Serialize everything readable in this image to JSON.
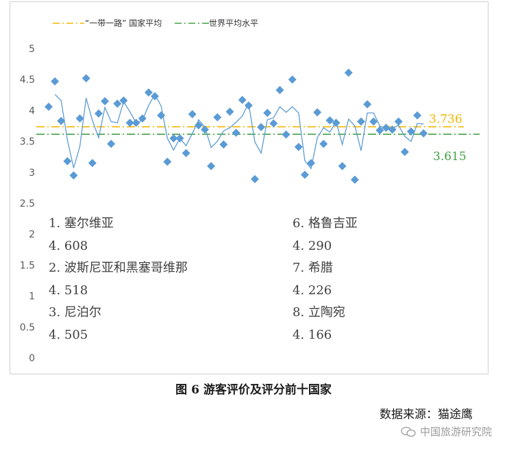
{
  "chart_data": {
    "type": "scatter",
    "yticks": [
      "5",
      "4.5",
      "4",
      "3.5",
      "3",
      "2.5",
      "2",
      "1.5",
      "1",
      "0.5",
      "0"
    ],
    "ylim": [
      0,
      5
    ],
    "grid": false,
    "legend_position": "top-left",
    "series": [
      {
        "name": "“一带一路” 国家平均",
        "kind": "hline",
        "value": 3.736,
        "color": "#f4b400",
        "value_label": "3.736"
      },
      {
        "name": "世界平均水平",
        "kind": "hline",
        "value": 3.615,
        "color": "#43a047",
        "value_label": "3.615"
      }
    ],
    "scatter_values": [
      4.06,
      4.47,
      3.83,
      3.18,
      2.95,
      3.87,
      4.52,
      3.15,
      3.95,
      4.15,
      3.46,
      4.11,
      4.16,
      3.8,
      3.8,
      3.87,
      4.29,
      4.23,
      3.92,
      3.17,
      3.55,
      3.55,
      3.31,
      3.94,
      3.76,
      3.69,
      3.1,
      3.89,
      3.45,
      3.98,
      3.64,
      4.17,
      4.08,
      2.89,
      3.73,
      3.96,
      3.79,
      4.33,
      3.61,
      4.5,
      3.41,
      2.96,
      3.15,
      3.97,
      3.46,
      3.84,
      3.8,
      3.1,
      4.61,
      2.88,
      3.82,
      4.1,
      3.82,
      3.68,
      3.72,
      3.69,
      3.82,
      3.33,
      3.66,
      3.92,
      3.63
    ],
    "moving_avg": [
      null,
      4.26,
      4.16,
      3.52,
      3.07,
      3.42,
      4.2,
      3.84,
      3.56,
      4.05,
      3.82,
      3.8,
      4.14,
      3.98,
      3.8,
      3.84,
      4.08,
      4.26,
      4.07,
      3.55,
      3.36,
      3.55,
      3.43,
      3.63,
      3.85,
      3.73,
      3.4,
      3.5,
      3.67,
      3.72,
      3.81,
      3.91,
      4.12,
      3.49,
      3.31,
      3.85,
      3.88,
      4.06,
      3.97,
      4.06,
      3.96,
      3.19,
      3.06,
      3.56,
      3.72,
      3.65,
      3.82,
      3.45,
      3.86,
      3.75,
      3.35,
      3.96,
      3.96,
      3.75,
      3.7,
      3.71,
      3.76,
      3.58,
      3.5,
      3.79,
      3.78
    ],
    "ranking": [
      {
        "name": "1. 塞尔维亚",
        "score": "4. 608"
      },
      {
        "name": "2. 波斯尼亚和黑塞哥维那",
        "score": "4. 518"
      },
      {
        "name": "3. 尼泊尔",
        "score": "4. 505"
      },
      {
        "name": "6. 格鲁吉亚",
        "score": "4. 290"
      },
      {
        "name": "7. 希腊",
        "score": "4. 226"
      },
      {
        "name": "8. 立陶宛",
        "score": "4. 166"
      }
    ],
    "colors": {
      "points": "#5b9bd5",
      "line": "#5b9bd5",
      "axis_text": "#595959"
    }
  },
  "caption": "图 6   游客评价及评分前十国家",
  "source": "数据来源：猫途鹰",
  "watermark": "中国旅游研究院",
  "watermark_icon": "wechat-icon"
}
